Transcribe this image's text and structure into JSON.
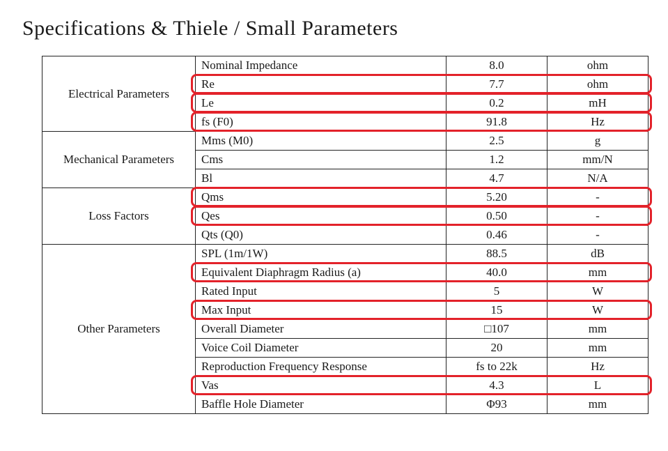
{
  "title": "Specifications & Thiele / Small Parameters",
  "highlight_color": "#e3222a",
  "columns": {
    "category_width": 220,
    "param_width": 360,
    "value_width": 145,
    "unit_width": 145
  },
  "sections": [
    {
      "category": "Electrical Parameters",
      "rows": [
        {
          "param": "Nominal Impedance",
          "value": "8.0",
          "unit": "ohm",
          "highlighted": false
        },
        {
          "param": "Re",
          "value": "7.7",
          "unit": "ohm",
          "highlighted": true
        },
        {
          "param": "Le",
          "value": "0.2",
          "unit": "mH",
          "highlighted": true
        },
        {
          "param": "fs (F0)",
          "value": "91.8",
          "unit": "Hz",
          "highlighted": true
        }
      ]
    },
    {
      "category": "Mechanical Parameters",
      "rows": [
        {
          "param": "Mms (M0)",
          "value": "2.5",
          "unit": "g",
          "highlighted": false
        },
        {
          "param": "Cms",
          "value": "1.2",
          "unit": "mm/N",
          "highlighted": false
        },
        {
          "param": "Bl",
          "value": "4.7",
          "unit": "N/A",
          "highlighted": false
        }
      ]
    },
    {
      "category": "Loss Factors",
      "rows": [
        {
          "param": "Qms",
          "value": "5.20",
          "unit": "-",
          "highlighted": true
        },
        {
          "param": "Qes",
          "value": "0.50",
          "unit": "-",
          "highlighted": true
        },
        {
          "param": "Qts (Q0)",
          "value": "0.46",
          "unit": "-",
          "highlighted": false
        }
      ]
    },
    {
      "category": "Other Parameters",
      "rows": [
        {
          "param": "SPL (1m/1W)",
          "value": "88.5",
          "unit": "dB",
          "highlighted": false
        },
        {
          "param": "Equivalent Diaphragm Radius (a)",
          "value": "40.0",
          "unit": "mm",
          "highlighted": true
        },
        {
          "param": "Rated Input",
          "value": "5",
          "unit": "W",
          "highlighted": false
        },
        {
          "param": "Max Input",
          "value": "15",
          "unit": "W",
          "highlighted": true
        },
        {
          "param": "Overall Diameter",
          "value": "□107",
          "unit": "mm",
          "highlighted": false
        },
        {
          "param": "Voice Coil Diameter",
          "value": "20",
          "unit": "mm",
          "highlighted": false
        },
        {
          "param": "Reproduction Frequency Response",
          "value": "fs to 22k",
          "unit": "Hz",
          "highlighted": false
        },
        {
          "param": "Vas",
          "value": "4.3",
          "unit": "L",
          "highlighted": true
        },
        {
          "param": "Baffle Hole Diameter",
          "value": "Φ93",
          "unit": "mm",
          "highlighted": false
        }
      ]
    }
  ]
}
